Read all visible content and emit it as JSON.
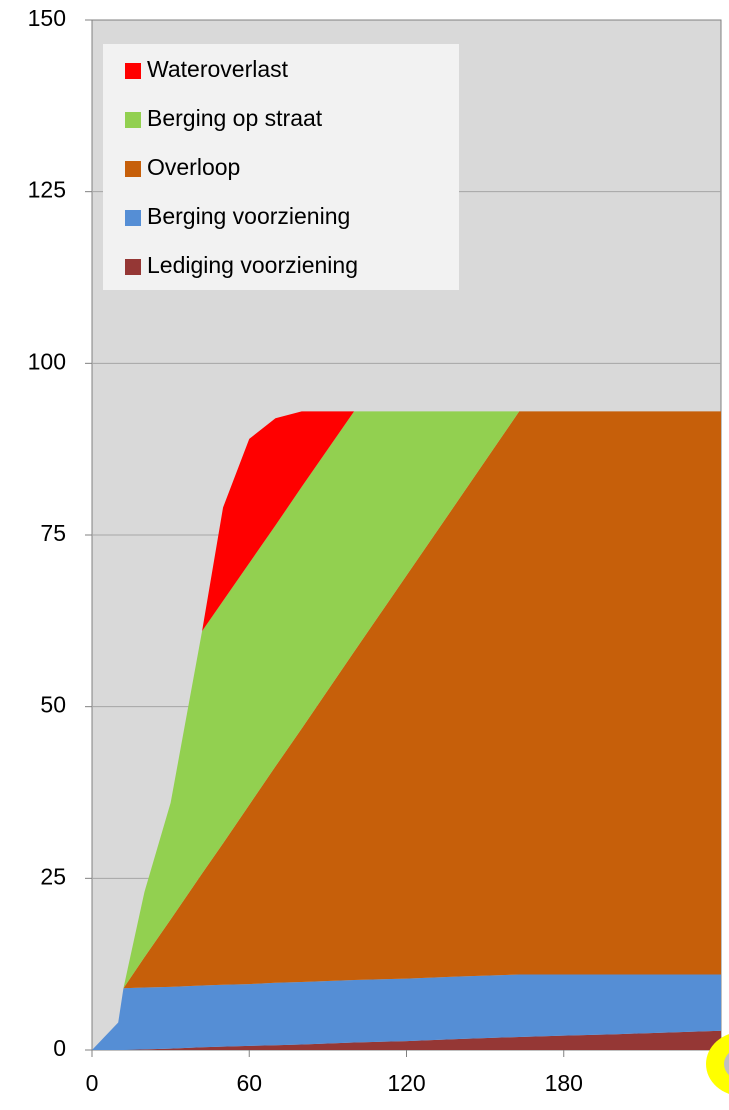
{
  "chart_data": {
    "type": "stacked_area",
    "x": [
      0,
      10,
      12,
      20,
      30,
      42,
      50,
      60,
      70,
      80,
      100,
      120,
      140,
      163,
      180,
      200,
      240
    ],
    "series": [
      {
        "name": "Lediging voorziening",
        "color": "#953735",
        "values": [
          0,
          0,
          0,
          0.1,
          0.2,
          0.4,
          0.5,
          0.6,
          0.7,
          0.8,
          1.1,
          1.3,
          1.6,
          1.9,
          2.1,
          2.3,
          2.8
        ]
      },
      {
        "name": "Berging voorziening",
        "color": "#558ed5",
        "values": [
          0,
          4,
          9,
          9,
          9,
          9,
          9,
          9,
          9.1,
          9.1,
          9.1,
          9.1,
          9.1,
          9.1,
          8.9,
          8.7,
          8.2
        ]
      },
      {
        "name": "Overloop",
        "color": "#c65f0a",
        "values": [
          0,
          0,
          0,
          4.4,
          9.8,
          16.3,
          20.6,
          26.1,
          31.5,
          36.9,
          47.8,
          58.7,
          69.5,
          82,
          82,
          82,
          82
        ]
      },
      {
        "name": "Berging op straat",
        "color": "#92d050",
        "values": [
          0,
          0,
          0,
          9.5,
          17,
          35.3,
          35.3,
          35.2,
          35.1,
          35.2,
          35,
          23.9,
          12.8,
          0,
          0,
          0,
          0
        ]
      },
      {
        "name": "Wateroverlast",
        "color": "#ff0000",
        "values": [
          0,
          0,
          0,
          0,
          0,
          0,
          13.6,
          18.1,
          15.6,
          11,
          0,
          0,
          0,
          0,
          0,
          0,
          0
        ]
      }
    ],
    "xlim": [
      0,
      240
    ],
    "xticks": [
      0,
      60,
      120,
      180
    ],
    "ylim": [
      0,
      150
    ],
    "yticks": [
      0,
      25,
      50,
      75,
      100,
      125,
      150
    ],
    "grid": true,
    "legend": "upper left"
  }
}
